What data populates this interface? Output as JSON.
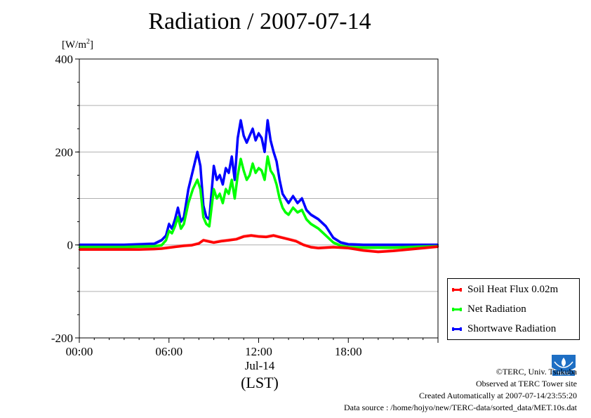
{
  "title": "Radiation / 2007-07-14",
  "unit_label": "[W/m",
  "unit_power": "2",
  "unit_close": "]",
  "x_date_label": "Jul-14",
  "x_unit_label": "(LST)",
  "footer": {
    "copyright": "©TERC, Univ. Tsukuba",
    "observed": "Observed at TERC Tower site",
    "created": "Created Automatically at 2007-07-14/23:55:20",
    "source": "Data source : /home/hojyo/new/TERC-data/sorted_data/MET.10s.dat"
  },
  "logo_text": "TERC",
  "colors": {
    "soil": "#ff0000",
    "net": "#00ff00",
    "shortwave": "#0000ff",
    "grid": "#b0b0b0"
  },
  "chart_data": {
    "type": "line",
    "title": "Radiation / 2007-07-14",
    "ylabel": "[W/m2]",
    "xlabel": "Jul-14 (LST)",
    "xlim": [
      0,
      24
    ],
    "ylim": [
      -200,
      400
    ],
    "x_ticks": [
      0,
      6,
      12,
      18
    ],
    "x_tick_labels": [
      "00:00",
      "06:00",
      "12:00",
      "18:00"
    ],
    "y_ticks": [
      -200,
      0,
      200,
      400
    ],
    "y_tick_labels": [
      "-200",
      "0",
      "200",
      "400"
    ],
    "grid": true,
    "legend_position": "bottom-right, outside plot",
    "series": [
      {
        "name": "Soil Heat Flux 0.02m",
        "color": "#ff0000",
        "x": [
          0,
          1,
          2,
          3,
          4,
          5,
          5.5,
          6,
          6.5,
          7,
          7.5,
          8,
          8.3,
          8.7,
          9,
          9.5,
          10,
          10.5,
          11,
          11.5,
          12,
          12.5,
          13,
          13.5,
          14,
          14.5,
          15,
          15.5,
          16,
          16.5,
          17,
          18,
          19,
          20,
          21,
          22,
          23,
          24
        ],
        "y": [
          -10,
          -10,
          -10,
          -10,
          -10,
          -9,
          -8,
          -6,
          -4,
          -2,
          -1,
          3,
          10,
          7,
          5,
          8,
          10,
          12,
          18,
          20,
          18,
          17,
          20,
          16,
          12,
          8,
          0,
          -5,
          -7,
          -6,
          -5,
          -7,
          -12,
          -15,
          -13,
          -10,
          -7,
          -4
        ]
      },
      {
        "name": "Net Radiation",
        "color": "#00ff00",
        "x": [
          0,
          1,
          2,
          3,
          4,
          5,
          5.5,
          5.8,
          6,
          6.2,
          6.4,
          6.6,
          6.8,
          7,
          7.3,
          7.6,
          7.9,
          8.1,
          8.3,
          8.5,
          8.7,
          9,
          9.2,
          9.4,
          9.6,
          9.8,
          10,
          10.2,
          10.4,
          10.6,
          10.8,
          11,
          11.2,
          11.4,
          11.6,
          11.8,
          12,
          12.2,
          12.4,
          12.6,
          12.8,
          13,
          13.2,
          13.4,
          13.6,
          13.8,
          14,
          14.3,
          14.6,
          14.9,
          15.2,
          15.5,
          16,
          16.5,
          17,
          17.5,
          18,
          19,
          20,
          21,
          22,
          23,
          24
        ],
        "y": [
          -5,
          -5,
          -5,
          -5,
          -4,
          -3,
          -1,
          10,
          30,
          25,
          40,
          60,
          35,
          45,
          90,
          120,
          140,
          120,
          60,
          45,
          40,
          120,
          100,
          110,
          90,
          120,
          110,
          140,
          100,
          150,
          185,
          160,
          140,
          150,
          175,
          155,
          165,
          160,
          140,
          190,
          160,
          150,
          130,
          100,
          80,
          70,
          65,
          80,
          70,
          75,
          55,
          45,
          35,
          20,
          5,
          -2,
          -5,
          -6,
          -6,
          -6,
          -5,
          -4,
          -3
        ]
      },
      {
        "name": "Shortwave Radiation",
        "color": "#0000ff",
        "x": [
          0,
          1,
          2,
          3,
          4,
          5,
          5.5,
          5.8,
          6,
          6.2,
          6.4,
          6.6,
          6.8,
          7,
          7.3,
          7.6,
          7.9,
          8.1,
          8.3,
          8.5,
          8.7,
          9,
          9.2,
          9.4,
          9.6,
          9.8,
          10,
          10.2,
          10.4,
          10.6,
          10.8,
          11,
          11.2,
          11.4,
          11.6,
          11.8,
          12,
          12.2,
          12.4,
          12.6,
          12.8,
          13,
          13.2,
          13.4,
          13.6,
          13.8,
          14,
          14.3,
          14.6,
          14.9,
          15.2,
          15.5,
          16,
          16.5,
          17,
          17.5,
          18,
          19,
          20,
          21,
          22,
          23,
          24
        ],
        "y": [
          0,
          0,
          0,
          0,
          1,
          2,
          10,
          20,
          45,
          35,
          55,
          80,
          50,
          60,
          120,
          160,
          200,
          170,
          85,
          60,
          55,
          170,
          140,
          150,
          130,
          165,
          155,
          190,
          140,
          230,
          268,
          235,
          220,
          235,
          250,
          225,
          240,
          230,
          200,
          268,
          225,
          200,
          180,
          140,
          110,
          100,
          90,
          105,
          90,
          100,
          75,
          65,
          55,
          40,
          15,
          5,
          1,
          0,
          0,
          0,
          0,
          0,
          0
        ]
      }
    ]
  }
}
